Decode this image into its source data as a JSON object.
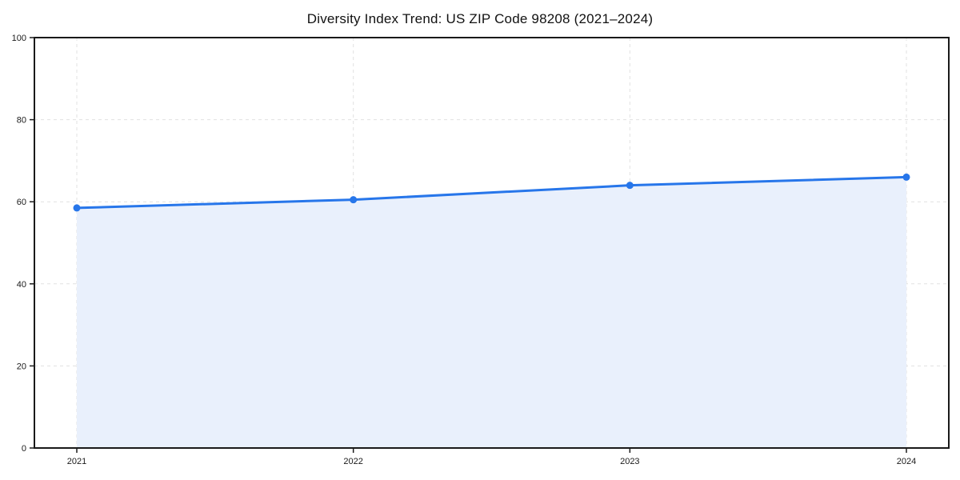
{
  "chart_data": {
    "type": "line",
    "title": "Diversity Index Trend: US ZIP Code 98208 (2021–2024)",
    "x": [
      2021,
      2022,
      2023,
      2024
    ],
    "xtick_labels": [
      "2021",
      "2022",
      "2023",
      "2024"
    ],
    "values": [
      58.5,
      60.5,
      64,
      66
    ],
    "xlabel": "",
    "ylabel": "",
    "ylim": [
      0,
      100
    ],
    "yticks": [
      0,
      20,
      40,
      60,
      80,
      100
    ],
    "grid": true,
    "grid_style": "dashed",
    "legend_position": "none",
    "marker": "circle",
    "area_fill": true,
    "colors": {
      "line": "#2776ea",
      "marker": "#2776ea",
      "fill": "#e9f0fc",
      "grid": "#e1e1e1",
      "axis": "#1a1a1a",
      "text": "#1a1a1a",
      "background": "#ffffff"
    }
  }
}
